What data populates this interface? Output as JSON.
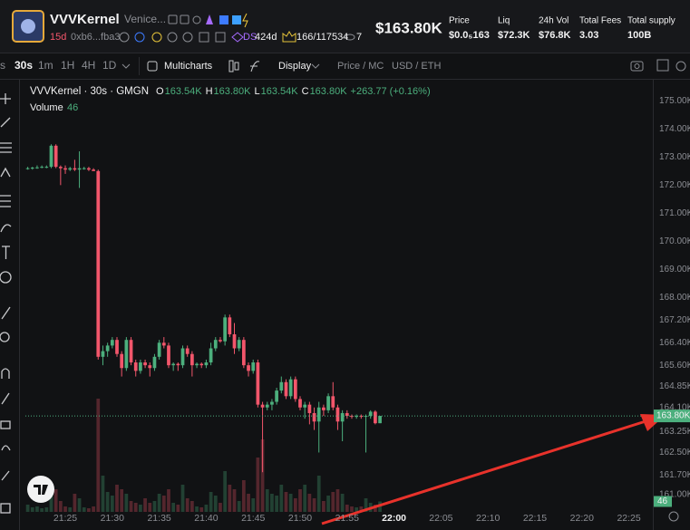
{
  "header": {
    "name": "VVVKernel",
    "subtitle": "Venice...",
    "age": "15d",
    "address": "0xb6...fba3",
    "ds_label": "DS",
    "ds_value": "424d",
    "holders": "166/117534",
    "watchers": "7",
    "price": "$163.80K",
    "stats": [
      {
        "label": "Price",
        "value": "$0.0₅163"
      },
      {
        "label": "Liq",
        "value": "$72.3K"
      },
      {
        "label": "24h Vol",
        "value": "$76.8K"
      },
      {
        "label": "Total Fees",
        "value": "3.03"
      },
      {
        "label": "Total supply",
        "value": "100B"
      }
    ]
  },
  "toolbar": {
    "intervals": [
      "s",
      "30s",
      "1m",
      "1H",
      "4H",
      "1D"
    ],
    "multicharts": "Multicharts",
    "display": "Display",
    "price_mc": "Price / MC",
    "currency": "USD / ETH"
  },
  "legend": {
    "title": "VVVKernel · 30s · GMGN",
    "items": [
      {
        "key": "O",
        "text": "163.54K"
      },
      {
        "key": "H",
        "text": "163.80K"
      },
      {
        "key": "L",
        "text": "163.54K"
      },
      {
        "key": "C",
        "text": "163.80K"
      }
    ],
    "change": "+263.77 (+0.16%)",
    "volume_label": "Volume"
  },
  "chart_data": {
    "type": "candlestick",
    "up_color": "#4caf7d",
    "down_color": "#f2566b",
    "x": [
      1281,
      1281.5,
      1282,
      1282.5,
      1283,
      1283.5,
      1284,
      1284.5,
      1285,
      1285.5,
      1286,
      1286.5,
      1287,
      1287.5,
      1288,
      1288.5,
      1289,
      1289.5,
      1290,
      1290.5,
      1291,
      1291.5,
      1292,
      1292.5,
      1293,
      1293.5,
      1294,
      1294.5,
      1295,
      1295.5,
      1296,
      1296.5,
      1297,
      1297.5,
      1298,
      1298.5,
      1299,
      1299.5,
      1300,
      1300.5,
      1301,
      1301.5,
      1302,
      1302.5,
      1303,
      1303.5,
      1304,
      1304.5,
      1305,
      1305.5,
      1306,
      1306.5,
      1307,
      1307.5,
      1308,
      1308.5,
      1309,
      1309.5,
      1310,
      1310.5,
      1311,
      1311.5,
      1312,
      1312.5,
      1313,
      1313.5,
      1314,
      1314.5,
      1315,
      1315.5,
      1316,
      1316.5,
      1317,
      1317.5,
      1318,
      1318.5
    ],
    "open": [
      172.6,
      172.6,
      172.62,
      172.63,
      172.65,
      172.65,
      173.4,
      172.65,
      172.6,
      172.55,
      172.6,
      172.55,
      172.6,
      172.6,
      172.55,
      172.5,
      165.9,
      166.1,
      166.3,
      166.5,
      166.0,
      165.5,
      166.5,
      165.7,
      165.4,
      165.7,
      165.6,
      165.5,
      165.9,
      166.4,
      166.3,
      165.6,
      165.65,
      165.6,
      166.2,
      166.0,
      165.6,
      165.65,
      165.6,
      165.7,
      166.2,
      166.5,
      166.45,
      167.3,
      166.7,
      166.2,
      166.5,
      165.6,
      165.4,
      165.7,
      164.2,
      164.1,
      164.2,
      164.3,
      164.7,
      165.0,
      164.5,
      165.1,
      164.4,
      164.1,
      164.2,
      163.9,
      163.6,
      164.1,
      164.0,
      164.5,
      164.1,
      163.6,
      163.9,
      163.8,
      163.78,
      163.8,
      163.78,
      163.8,
      163.95,
      163.54
    ],
    "high": [
      172.65,
      172.65,
      172.7,
      172.7,
      172.7,
      173.45,
      173.45,
      172.7,
      172.7,
      172.65,
      172.9,
      173.2,
      172.65,
      172.65,
      172.6,
      172.55,
      166.3,
      166.4,
      166.6,
      166.6,
      166.1,
      166.6,
      166.6,
      165.8,
      165.8,
      165.8,
      165.7,
      166.0,
      166.5,
      166.6,
      166.4,
      165.7,
      165.7,
      166.3,
      166.3,
      166.1,
      165.7,
      165.7,
      165.8,
      166.4,
      166.6,
      166.6,
      167.4,
      167.4,
      167.1,
      166.6,
      166.6,
      165.7,
      165.8,
      165.8,
      164.3,
      164.3,
      164.4,
      164.8,
      165.2,
      165.1,
      165.2,
      165.2,
      164.5,
      164.3,
      164.3,
      164.1,
      164.3,
      164.2,
      164.6,
      165.0,
      164.2,
      164.0,
      164.0,
      163.85,
      163.85,
      163.85,
      163.85,
      164.0,
      164.0,
      163.8
    ],
    "low": [
      172.55,
      172.55,
      172.58,
      172.6,
      172.6,
      172.6,
      172.6,
      172.0,
      172.4,
      172.5,
      172.5,
      171.9,
      172.55,
      172.5,
      172.5,
      165.8,
      165.6,
      165.9,
      166.2,
      165.9,
      165.2,
      165.4,
      165.6,
      165.2,
      165.3,
      165.5,
      165.2,
      165.4,
      165.8,
      166.2,
      165.5,
      165.4,
      165.4,
      165.5,
      165.9,
      165.2,
      165.5,
      165.5,
      165.5,
      165.6,
      166.1,
      166.4,
      166.3,
      166.6,
      166.0,
      166.1,
      165.5,
      165.2,
      165.3,
      164.1,
      161.8,
      164.0,
      164.0,
      164.2,
      164.6,
      164.4,
      164.4,
      164.3,
      164.0,
      163.7,
      163.5,
      163.3,
      162.5,
      163.8,
      163.9,
      164.0,
      163.3,
      162.9,
      163.7,
      163.7,
      163.7,
      163.7,
      162.5,
      163.7,
      163.5,
      163.54
    ],
    "close": [
      172.6,
      172.62,
      172.63,
      172.65,
      172.65,
      173.4,
      172.65,
      172.6,
      172.55,
      172.6,
      172.55,
      172.6,
      172.6,
      172.55,
      172.5,
      165.9,
      166.1,
      166.3,
      166.5,
      166.0,
      165.5,
      166.5,
      165.7,
      165.4,
      165.7,
      165.6,
      165.5,
      165.9,
      166.4,
      166.3,
      165.6,
      165.65,
      165.6,
      166.2,
      166.0,
      165.6,
      165.65,
      165.6,
      165.7,
      166.2,
      166.5,
      166.45,
      167.3,
      166.7,
      166.2,
      166.5,
      165.6,
      165.4,
      165.7,
      164.2,
      164.1,
      164.2,
      164.3,
      164.7,
      165.0,
      164.5,
      165.1,
      164.4,
      164.1,
      164.2,
      163.9,
      163.6,
      164.1,
      164.0,
      164.5,
      164.1,
      163.6,
      163.9,
      163.8,
      163.78,
      163.8,
      163.78,
      163.8,
      163.95,
      163.54,
      163.8
    ],
    "volume": [
      32,
      20,
      24,
      16,
      20,
      120,
      100,
      48,
      24,
      20,
      80,
      60,
      20,
      16,
      24,
      500,
      160,
      88,
      72,
      120,
      100,
      80,
      48,
      40,
      32,
      60,
      40,
      48,
      80,
      72,
      100,
      40,
      32,
      120,
      60,
      48,
      24,
      20,
      32,
      88,
      72,
      40,
      180,
      120,
      100,
      48,
      140,
      80,
      60,
      240,
      320,
      100,
      80,
      72,
      120,
      88,
      80,
      60,
      100,
      120,
      80,
      60,
      160,
      48,
      72,
      88,
      100,
      80,
      32,
      24,
      20,
      24,
      60,
      40,
      32,
      46
    ],
    "vlim": [
      0,
      520
    ],
    "xlim": [
      1280.75,
      1347.55
    ],
    "xticks": [
      {
        "value": 1285,
        "label": "21:25"
      },
      {
        "value": 1290,
        "label": "21:30"
      },
      {
        "value": 1295,
        "label": "21:35"
      },
      {
        "value": 1300,
        "label": "21:40"
      },
      {
        "value": 1305,
        "label": "21:45"
      },
      {
        "value": 1310,
        "label": "21:50"
      },
      {
        "value": 1315,
        "label": "21:55"
      },
      {
        "value": 1320,
        "label": "22:00"
      },
      {
        "value": 1325,
        "label": "22:05"
      },
      {
        "value": 1330,
        "label": "22:10"
      },
      {
        "value": 1335,
        "label": "22:15"
      },
      {
        "value": 1340,
        "label": "22:20"
      },
      {
        "value": 1345,
        "label": "22:25"
      }
    ],
    "ylim": [
      160.39,
      175.68
    ],
    "yticks": [
      {
        "value": 175,
        "label": "175.00K"
      },
      {
        "value": 174,
        "label": "174.00K"
      },
      {
        "value": 173,
        "label": "173.00K"
      },
      {
        "value": 172,
        "label": "172.00K"
      },
      {
        "value": 171,
        "label": "171.00K"
      },
      {
        "value": 170,
        "label": "170.00K"
      },
      {
        "value": 169,
        "label": "169.00K"
      },
      {
        "value": 168,
        "label": "168.00K"
      },
      {
        "value": 167.2,
        "label": "167.20K"
      },
      {
        "value": 166.4,
        "label": "166.40K"
      },
      {
        "value": 165.6,
        "label": "165.60K"
      },
      {
        "value": 164.85,
        "label": "164.85K"
      },
      {
        "value": 164.1,
        "label": "164.10K"
      },
      {
        "value": 163.25,
        "label": "163.25K"
      },
      {
        "value": 162.5,
        "label": "162.50K"
      },
      {
        "value": 161.7,
        "label": "161.70K"
      },
      {
        "value": 161,
        "label": "161.00K"
      }
    ],
    "price_line": {
      "value": 163.8,
      "label": "163.80K"
    }
  }
}
